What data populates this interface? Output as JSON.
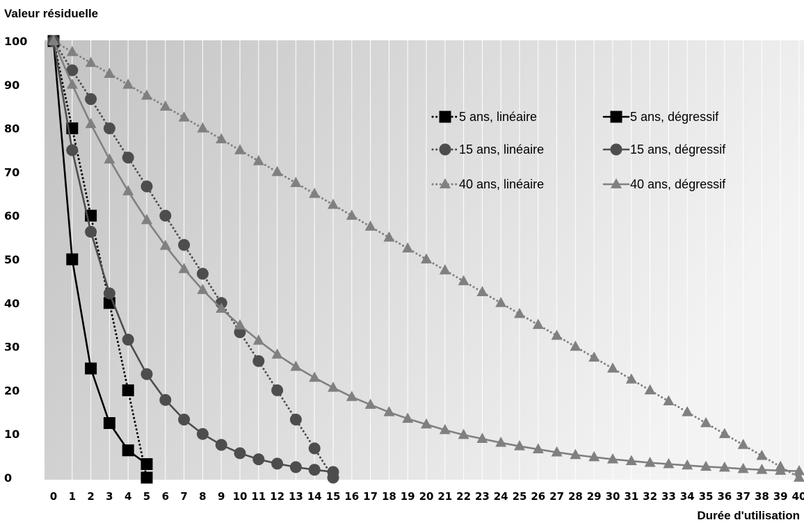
{
  "chart_data": {
    "type": "line",
    "title": "",
    "ylabel": "Valeur résiduelle",
    "xlabel": "Durée d'utilisation",
    "xlim": [
      0,
      40
    ],
    "ylim": [
      0,
      100
    ],
    "x_ticks": [
      0,
      1,
      2,
      3,
      4,
      5,
      6,
      7,
      8,
      9,
      10,
      11,
      12,
      13,
      14,
      15,
      16,
      17,
      18,
      19,
      20,
      21,
      22,
      23,
      24,
      25,
      26,
      27,
      28,
      29,
      30,
      31,
      32,
      33,
      34,
      35,
      36,
      37,
      38,
      39,
      40
    ],
    "y_ticks": [
      0,
      10,
      20,
      30,
      40,
      50,
      60,
      70,
      80,
      90,
      100
    ],
    "grid": "vertical",
    "legend_position": "top-right",
    "series": [
      {
        "name": "5 ans, linéaire",
        "style": "dotted",
        "marker": "square",
        "color": "#000000",
        "points": [
          [
            0,
            100
          ],
          [
            1,
            80
          ],
          [
            2,
            60
          ],
          [
            3,
            40
          ],
          [
            4,
            20
          ],
          [
            5,
            0
          ]
        ]
      },
      {
        "name": "5 ans, dégressif",
        "style": "solid",
        "marker": "square",
        "color": "#000000",
        "points": [
          [
            0,
            100
          ],
          [
            1,
            50
          ],
          [
            2,
            25
          ],
          [
            3,
            12.5
          ],
          [
            4,
            6.25
          ],
          [
            5,
            3.1
          ]
        ]
      },
      {
        "name": "15 ans, linéaire",
        "style": "dotted",
        "marker": "circle",
        "color": "#4d4d4d",
        "points": [
          [
            0,
            100
          ],
          [
            1,
            93.3
          ],
          [
            2,
            86.7
          ],
          [
            3,
            80
          ],
          [
            4,
            73.3
          ],
          [
            5,
            66.7
          ],
          [
            6,
            60
          ],
          [
            7,
            53.3
          ],
          [
            8,
            46.7
          ],
          [
            9,
            40
          ],
          [
            10,
            33.3
          ],
          [
            11,
            26.7
          ],
          [
            12,
            20
          ],
          [
            13,
            13.3
          ],
          [
            14,
            6.7
          ],
          [
            15,
            0
          ]
        ]
      },
      {
        "name": "15 ans, dégressif",
        "style": "solid",
        "marker": "circle",
        "color": "#4d4d4d",
        "points": [
          [
            0,
            100
          ],
          [
            1,
            75
          ],
          [
            2,
            56.3
          ],
          [
            3,
            42.2
          ],
          [
            4,
            31.6
          ],
          [
            5,
            23.7
          ],
          [
            6,
            17.8
          ],
          [
            7,
            13.3
          ],
          [
            8,
            10
          ],
          [
            9,
            7.5
          ],
          [
            10,
            5.6
          ],
          [
            11,
            4.2
          ],
          [
            12,
            3.2
          ],
          [
            13,
            2.4
          ],
          [
            14,
            1.8
          ],
          [
            15,
            1.3
          ]
        ]
      },
      {
        "name": "40 ans, linéaire",
        "style": "dotted",
        "marker": "triangle",
        "color": "#808080",
        "points": [
          [
            0,
            100
          ],
          [
            1,
            97.5
          ],
          [
            2,
            95
          ],
          [
            3,
            92.5
          ],
          [
            4,
            90
          ],
          [
            5,
            87.5
          ],
          [
            6,
            85
          ],
          [
            7,
            82.5
          ],
          [
            8,
            80
          ],
          [
            9,
            77.5
          ],
          [
            10,
            75
          ],
          [
            11,
            72.5
          ],
          [
            12,
            70
          ],
          [
            13,
            67.5
          ],
          [
            14,
            65
          ],
          [
            15,
            62.5
          ],
          [
            16,
            60
          ],
          [
            17,
            57.5
          ],
          [
            18,
            55
          ],
          [
            19,
            52.5
          ],
          [
            20,
            50
          ],
          [
            21,
            47.5
          ],
          [
            22,
            45
          ],
          [
            23,
            42.5
          ],
          [
            24,
            40
          ],
          [
            25,
            37.5
          ],
          [
            26,
            35
          ],
          [
            27,
            32.5
          ],
          [
            28,
            30
          ],
          [
            29,
            27.5
          ],
          [
            30,
            25
          ],
          [
            31,
            22.5
          ],
          [
            32,
            20
          ],
          [
            33,
            17.5
          ],
          [
            34,
            15
          ],
          [
            35,
            12.5
          ],
          [
            36,
            10
          ],
          [
            37,
            7.5
          ],
          [
            38,
            5
          ],
          [
            39,
            2.5
          ],
          [
            40,
            0
          ]
        ]
      },
      {
        "name": "40 ans, dégressif",
        "style": "solid",
        "marker": "triangle",
        "color": "#808080",
        "points": [
          [
            0,
            100
          ],
          [
            1,
            90
          ],
          [
            2,
            81
          ],
          [
            3,
            72.9
          ],
          [
            4,
            65.6
          ],
          [
            5,
            59
          ],
          [
            6,
            53.1
          ],
          [
            7,
            47.8
          ],
          [
            8,
            43
          ],
          [
            9,
            38.7
          ],
          [
            10,
            34.9
          ],
          [
            11,
            31.4
          ],
          [
            12,
            28.2
          ],
          [
            13,
            25.4
          ],
          [
            14,
            22.9
          ],
          [
            15,
            20.6
          ],
          [
            16,
            18.5
          ],
          [
            17,
            16.7
          ],
          [
            18,
            15
          ],
          [
            19,
            13.5
          ],
          [
            20,
            12.2
          ],
          [
            21,
            10.9
          ],
          [
            22,
            9.8
          ],
          [
            23,
            8.9
          ],
          [
            24,
            8
          ],
          [
            25,
            7.2
          ],
          [
            26,
            6.5
          ],
          [
            27,
            5.8
          ],
          [
            28,
            5.2
          ],
          [
            29,
            4.7
          ],
          [
            30,
            4.2
          ],
          [
            31,
            3.8
          ],
          [
            32,
            3.4
          ],
          [
            33,
            3.1
          ],
          [
            34,
            2.8
          ],
          [
            35,
            2.5
          ],
          [
            36,
            2.3
          ],
          [
            37,
            2
          ],
          [
            38,
            1.8
          ],
          [
            39,
            1.6
          ],
          [
            40,
            1.5
          ]
        ]
      }
    ]
  }
}
